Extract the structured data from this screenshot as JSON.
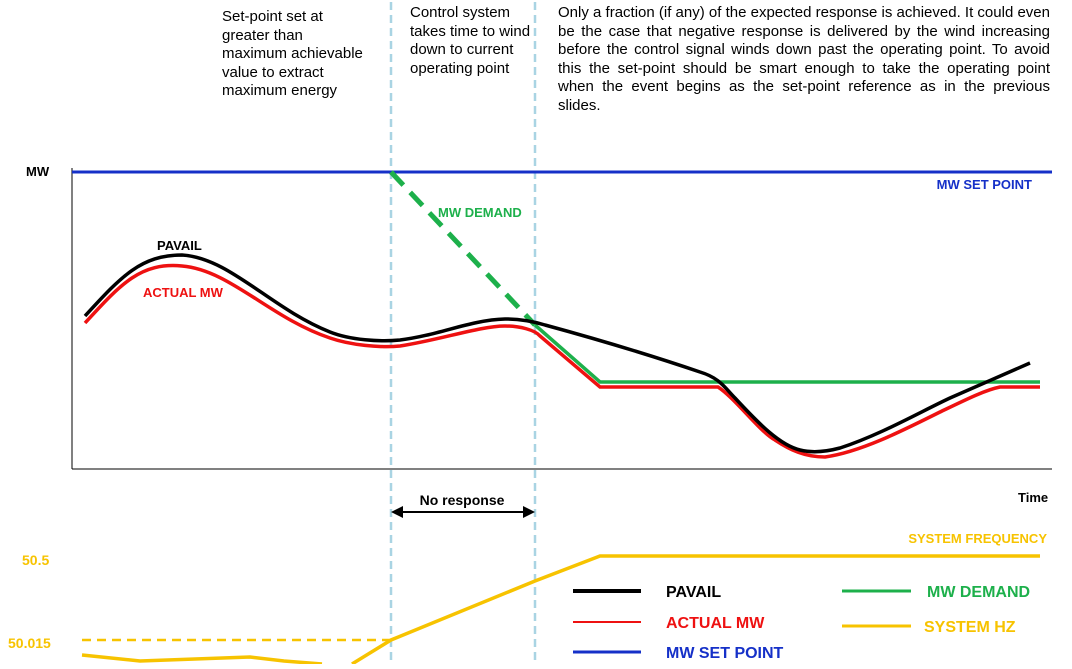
{
  "annotations": {
    "setpoint_note": "Set-point set at greater than maximum achievable value to extract maximum energy",
    "control_note": "Control system takes time to wind down to current operating point",
    "fraction_note": "Only a fraction (if any) of the expected response is achieved. It could even be the case that negative response is delivered by the wind increasing before the control signal winds down past the operating point. To avoid this the set-point should be smart enough to take the operating point when the event begins as the set-point reference as in the previous slides."
  },
  "axes": {
    "y_label": "MW",
    "x_label": "Time"
  },
  "curve_labels": {
    "pavail": "PAVAIL",
    "actual_mw": "ACTUAL MW",
    "mw_demand": "MW DEMAND",
    "mw_set_point": "MW SET POINT",
    "system_frequency": "SYSTEM FREQUENCY"
  },
  "no_response_label": "No response",
  "frequency_ticks": [
    "50.5",
    "50.015"
  ],
  "legend": [
    {
      "label": "PAVAIL",
      "color": "#000000"
    },
    {
      "label": "ACTUAL MW",
      "color": "#ee1111"
    },
    {
      "label": "MW SET POINT",
      "color": "#1530c8"
    },
    {
      "label": "MW DEMAND",
      "color": "#1db04b"
    },
    {
      "label": "SYSTEM HZ",
      "color": "#f7c300"
    }
  ],
  "colors": {
    "pavail": "#000000",
    "actual_mw": "#ee1111",
    "set_point": "#1530c8",
    "demand": "#1db04b",
    "frequency": "#f7c300",
    "marker": "#a9d4e3"
  }
}
